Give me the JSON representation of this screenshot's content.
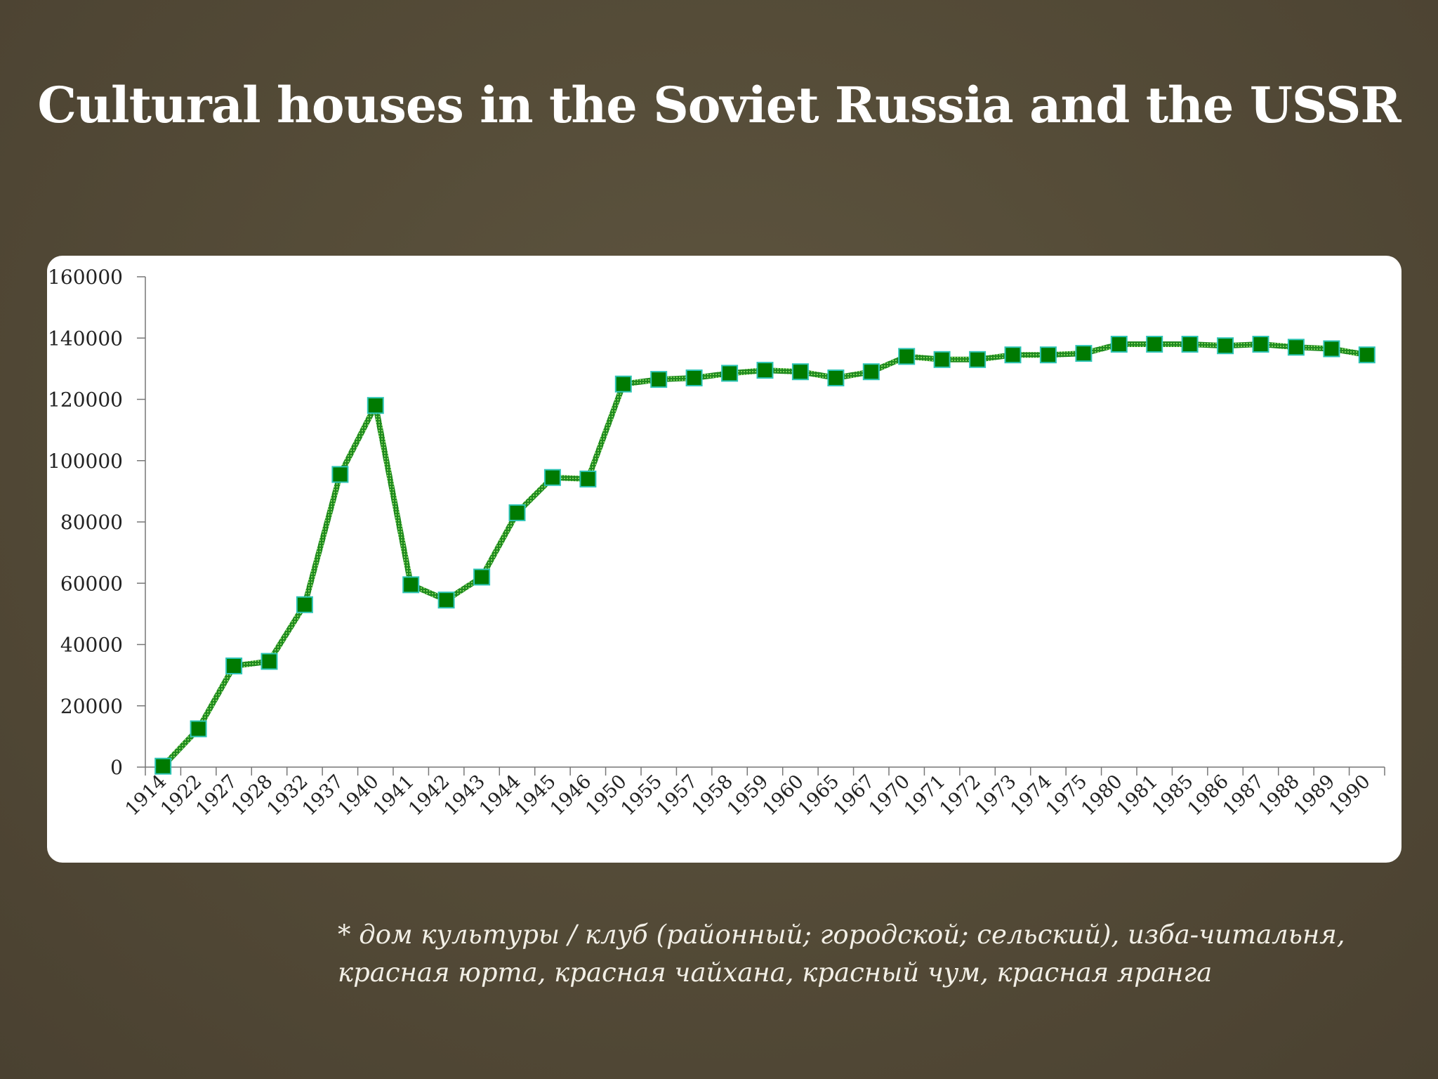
{
  "slide": {
    "title": "Cultural houses in the Soviet Russia and the USSR",
    "footnote_line1": "* дом культуры / клуб (районный; городской; сельский), изба-читальня,",
    "footnote_line2": "красная юрта, красная чайхана, красный чум, красная яранга"
  },
  "colors": {
    "background": "#554c38",
    "line": "#1f8a1f",
    "marker_fill": "#007a00",
    "marker_stroke": "#2ec4b6",
    "text": "#ffffff"
  },
  "chart_data": {
    "type": "line",
    "title": "",
    "xlabel": "",
    "ylabel": "",
    "ylim": [
      0,
      160000
    ],
    "yticks": [
      0,
      20000,
      40000,
      60000,
      80000,
      100000,
      120000,
      140000,
      160000
    ],
    "grid": false,
    "legend": "none",
    "categories": [
      "1914",
      "1922",
      "1927",
      "1928",
      "1932",
      "1937",
      "1940",
      "1941",
      "1942",
      "1943",
      "1944",
      "1945",
      "1946",
      "1950",
      "1955",
      "1957",
      "1958",
      "1959",
      "1960",
      "1965",
      "1967",
      "1970",
      "1971",
      "1972",
      "1973",
      "1974",
      "1975",
      "1980",
      "1981",
      "1985",
      "1986",
      "1987",
      "1988",
      "1989",
      "1990"
    ],
    "series": [
      {
        "values": [
          300,
          12500,
          33000,
          34500,
          53000,
          95500,
          118000,
          59500,
          54500,
          62000,
          83000,
          94500,
          94000,
          125000,
          126500,
          127000,
          128500,
          129500,
          129000,
          127000,
          129000,
          134000,
          133000,
          133000,
          134500,
          134500,
          135000,
          138000,
          138000,
          138000,
          137500,
          138000,
          137000,
          136500,
          134500
        ]
      }
    ]
  }
}
